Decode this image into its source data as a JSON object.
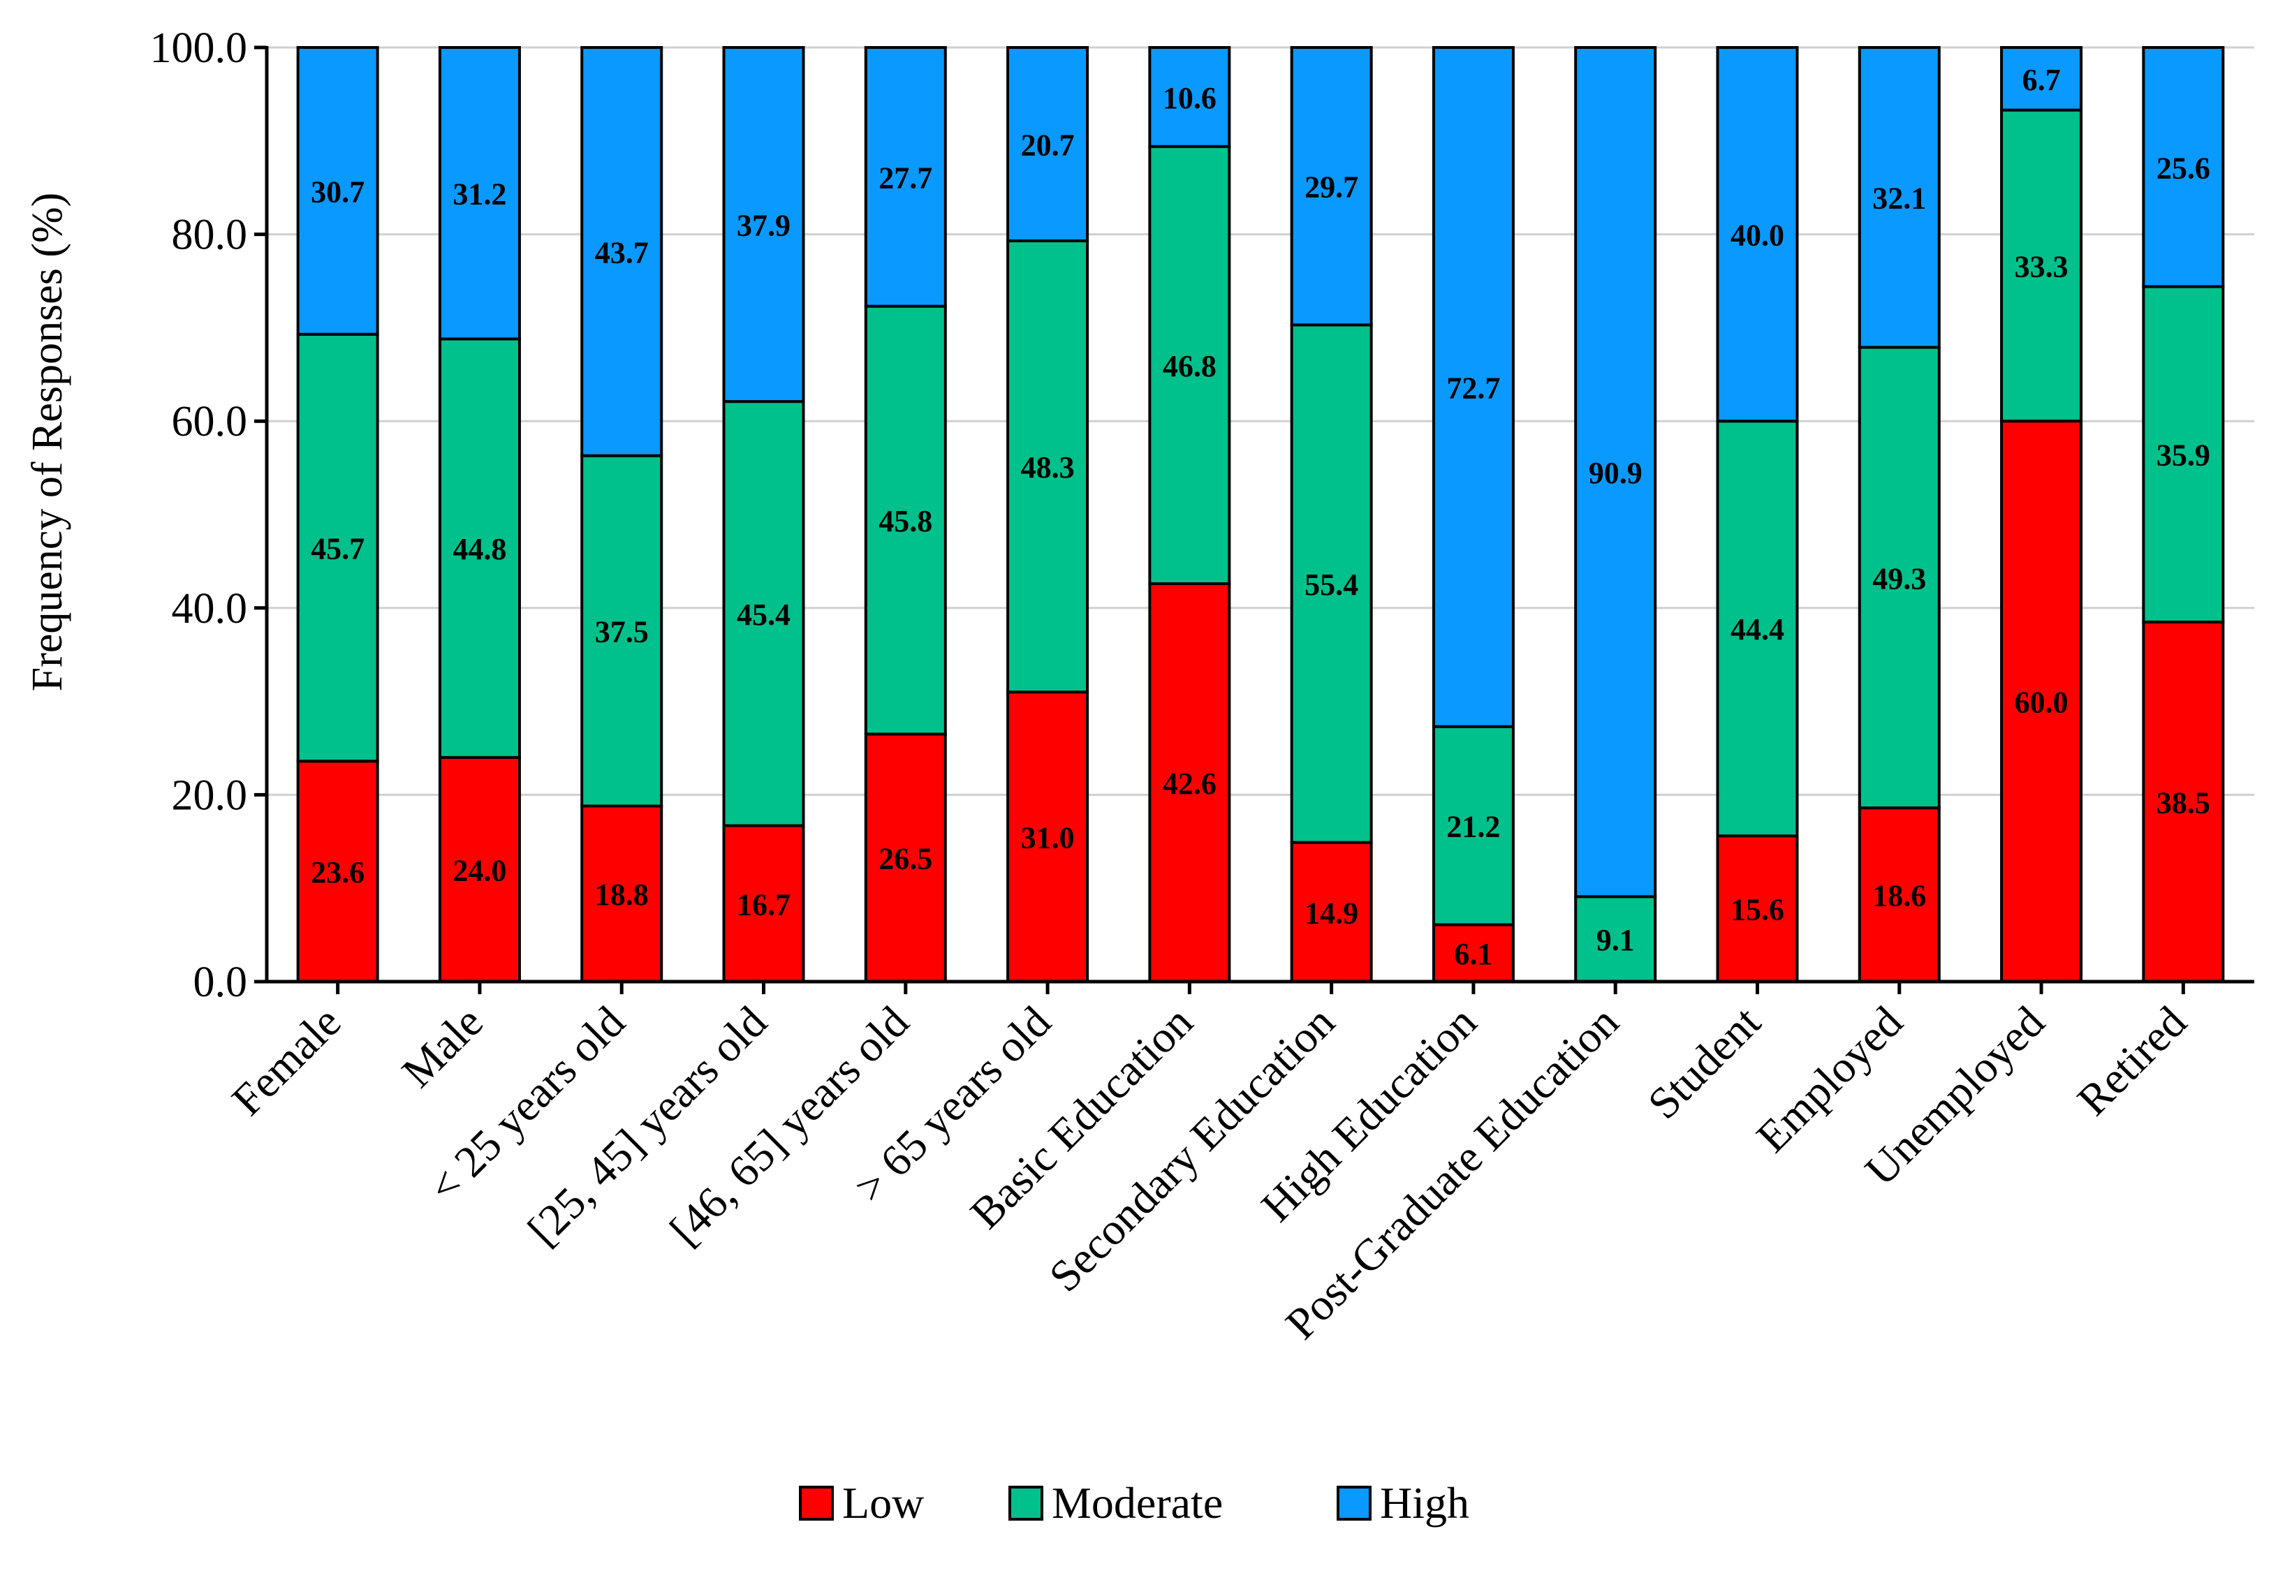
{
  "chart_data": {
    "type": "bar",
    "stacked": true,
    "ylabel": "Frequency of Responses (%)",
    "xlabel": "",
    "ylim": [
      0,
      100
    ],
    "yticks": [
      "0.0",
      "20.0",
      "40.0",
      "60.0",
      "80.0",
      "100.0"
    ],
    "grid": true,
    "legend_position": "bottom-center",
    "categories": [
      "Female",
      "Male",
      "< 25 years old",
      "[25, 45] years old",
      "[46, 65] years old",
      "> 65 years old",
      "Basic Education",
      "Secondary Education",
      "High Education",
      "Post-Graduate Education",
      "Student",
      "Employed",
      "Unemployed",
      "Retired"
    ],
    "series": [
      {
        "name": "Low",
        "color": "#ff0000",
        "values": [
          23.6,
          24.0,
          18.8,
          16.7,
          26.5,
          31.0,
          42.6,
          14.9,
          6.1,
          0,
          15.6,
          18.6,
          60.0,
          38.5
        ],
        "labels": [
          "23.6",
          "24.0",
          "18.8",
          "16.7",
          "26.5",
          "31.0",
          "42.6",
          "14.9",
          "6.1",
          "",
          "15.6",
          "18.6",
          "60.0",
          "38.5"
        ]
      },
      {
        "name": "Moderate",
        "color": "#00c08b",
        "values": [
          45.7,
          44.8,
          37.5,
          45.4,
          45.8,
          48.3,
          46.8,
          55.4,
          21.2,
          9.1,
          44.4,
          49.3,
          33.3,
          35.9
        ],
        "labels": [
          "45.7",
          "44.8",
          "37.5",
          "45.4",
          "45.8",
          "48.3",
          "46.8",
          "55.4",
          "21.2",
          "9.1",
          "44.4",
          "49.3",
          "33.3",
          "35.9"
        ]
      },
      {
        "name": "High",
        "color": "#0a99ff",
        "values": [
          30.7,
          31.2,
          43.7,
          37.9,
          27.7,
          20.7,
          10.6,
          29.7,
          72.7,
          90.9,
          40.0,
          32.1,
          6.7,
          25.6
        ],
        "labels": [
          "30.7",
          "31.2",
          "43.7",
          "37.9",
          "27.7",
          "20.7",
          "10.6",
          "29.7",
          "72.7",
          "90.9",
          "40.0",
          "32.1",
          "6.7",
          "25.6"
        ]
      }
    ]
  }
}
